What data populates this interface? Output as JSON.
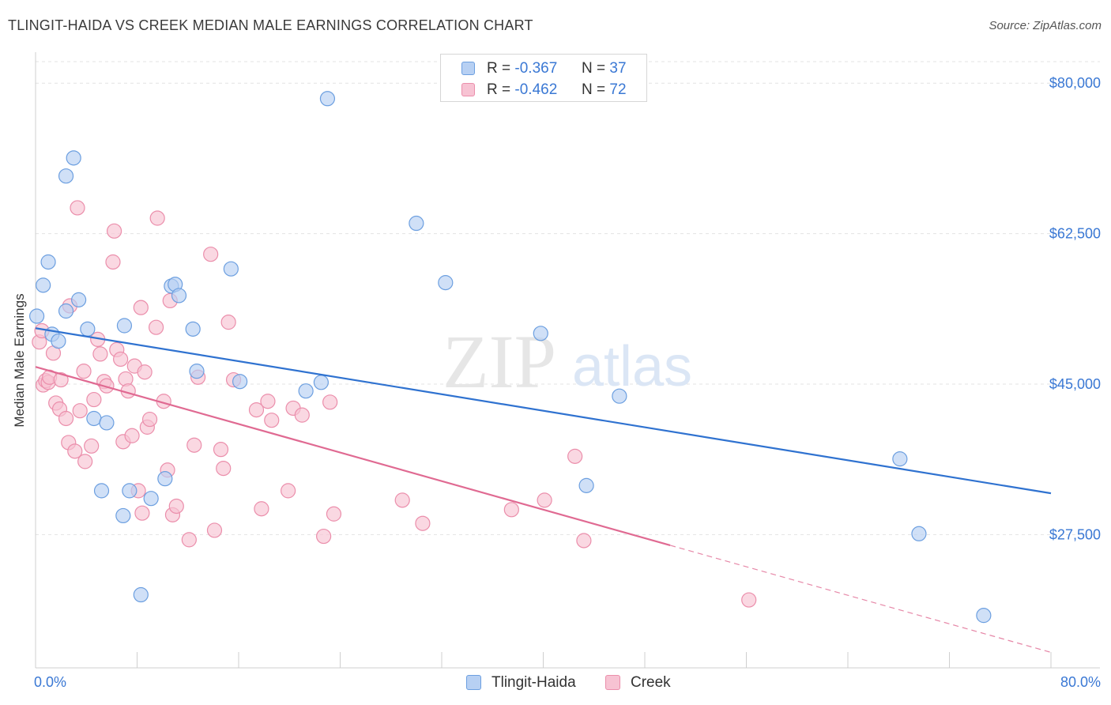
{
  "title": "TLINGIT-HAIDA VS CREEK MEDIAN MALE EARNINGS CORRELATION CHART",
  "source": "Source: ZipAtlas.com",
  "watermark": {
    "zip": "ZIP",
    "atlas": "atlas"
  },
  "colors": {
    "blue_fill": "#b7d0f3",
    "blue_stroke": "#6c9fe0",
    "blue_line": "#2f72d0",
    "pink_fill": "#f7c3d3",
    "pink_stroke": "#eb8eab",
    "pink_line": "#e06a92",
    "axis_label": "#3a78d4",
    "grid": "#e3e3e3"
  },
  "legend_top": {
    "rows": [
      {
        "r_label": "R =",
        "r_value": "-0.367",
        "n_label": "N =",
        "n_value": "37"
      },
      {
        "r_label": "R =",
        "r_value": "-0.462",
        "n_label": "N =",
        "n_value": "72"
      }
    ]
  },
  "legend_bottom": {
    "series_a": "Tlingit-Haida",
    "series_b": "Creek"
  },
  "chart_data": {
    "type": "scatter",
    "title": "TLINGIT-HAIDA VS CREEK MEDIAN MALE EARNINGS CORRELATION CHART",
    "xlabel": "",
    "ylabel": "Median Male Earnings",
    "xlim": [
      0,
      80
    ],
    "ylim": [
      12000,
      82500
    ],
    "x_tick_labels": [
      "0.0%",
      "80.0%"
    ],
    "y_ticks": [
      27500,
      45000,
      62500,
      80000
    ],
    "y_tick_labels": [
      "$27,500",
      "$45,000",
      "$62,500",
      "$80,000"
    ],
    "grid": true,
    "series": [
      {
        "name": "Tlingit-Haida",
        "r": -0.367,
        "n": 37,
        "trend": {
          "x0": 0,
          "y0": 51500,
          "x1": 80,
          "y1": 32300,
          "solid_to": 80
        },
        "points": [
          [
            0.1,
            52900
          ],
          [
            0.6,
            56500
          ],
          [
            1.0,
            59200
          ],
          [
            1.3,
            50800
          ],
          [
            1.8,
            50000
          ],
          [
            2.4,
            53500
          ],
          [
            2.4,
            69200
          ],
          [
            3.0,
            71300
          ],
          [
            3.4,
            54800
          ],
          [
            4.1,
            51400
          ],
          [
            4.6,
            41000
          ],
          [
            5.2,
            32600
          ],
          [
            5.6,
            40500
          ],
          [
            6.9,
            29700
          ],
          [
            7.0,
            51800
          ],
          [
            7.4,
            32600
          ],
          [
            8.3,
            20500
          ],
          [
            9.1,
            31700
          ],
          [
            10.2,
            34000
          ],
          [
            10.7,
            56400
          ],
          [
            11.0,
            56600
          ],
          [
            11.3,
            55300
          ],
          [
            12.4,
            51400
          ],
          [
            12.7,
            46500
          ],
          [
            15.4,
            58400
          ],
          [
            16.1,
            45300
          ],
          [
            21.3,
            44200
          ],
          [
            22.5,
            45200
          ],
          [
            23.0,
            78200
          ],
          [
            30.0,
            63700
          ],
          [
            32.3,
            56800
          ],
          [
            39.8,
            50900
          ],
          [
            43.4,
            33200
          ],
          [
            46.0,
            43600
          ],
          [
            68.1,
            36300
          ],
          [
            69.6,
            27600
          ],
          [
            74.7,
            18100
          ]
        ]
      },
      {
        "name": "Creek",
        "r": -0.462,
        "n": 72,
        "trend": {
          "x0": 0,
          "y0": 47000,
          "x1": 80,
          "y1": 13800,
          "solid_to": 50
        },
        "points": [
          [
            0.3,
            49900
          ],
          [
            0.5,
            51200
          ],
          [
            0.6,
            44900
          ],
          [
            0.8,
            45400
          ],
          [
            1.0,
            45200
          ],
          [
            1.1,
            45800
          ],
          [
            1.4,
            48600
          ],
          [
            1.6,
            42800
          ],
          [
            1.9,
            42100
          ],
          [
            2.0,
            45500
          ],
          [
            2.4,
            41000
          ],
          [
            2.6,
            38200
          ],
          [
            2.7,
            54100
          ],
          [
            3.1,
            37200
          ],
          [
            3.3,
            65500
          ],
          [
            3.5,
            41900
          ],
          [
            3.8,
            46500
          ],
          [
            3.9,
            36000
          ],
          [
            4.4,
            37800
          ],
          [
            4.6,
            43200
          ],
          [
            4.9,
            50200
          ],
          [
            5.1,
            48500
          ],
          [
            5.4,
            45300
          ],
          [
            5.6,
            44800
          ],
          [
            6.1,
            59200
          ],
          [
            6.2,
            62800
          ],
          [
            6.4,
            49000
          ],
          [
            6.7,
            47900
          ],
          [
            6.9,
            38300
          ],
          [
            7.1,
            45600
          ],
          [
            7.3,
            44200
          ],
          [
            7.6,
            39000
          ],
          [
            7.8,
            47100
          ],
          [
            8.1,
            32600
          ],
          [
            8.3,
            53900
          ],
          [
            8.4,
            30000
          ],
          [
            8.6,
            46400
          ],
          [
            8.8,
            40000
          ],
          [
            9.0,
            40900
          ],
          [
            9.5,
            51600
          ],
          [
            9.6,
            64300
          ],
          [
            10.1,
            43000
          ],
          [
            10.4,
            35000
          ],
          [
            10.6,
            54700
          ],
          [
            10.8,
            29800
          ],
          [
            11.1,
            30800
          ],
          [
            12.1,
            26900
          ],
          [
            12.5,
            37900
          ],
          [
            12.8,
            45800
          ],
          [
            13.8,
            60100
          ],
          [
            14.1,
            28000
          ],
          [
            14.6,
            37400
          ],
          [
            14.8,
            35200
          ],
          [
            15.2,
            52200
          ],
          [
            15.6,
            45500
          ],
          [
            17.4,
            42000
          ],
          [
            17.8,
            30500
          ],
          [
            18.3,
            43000
          ],
          [
            18.6,
            40800
          ],
          [
            19.9,
            32600
          ],
          [
            20.3,
            42200
          ],
          [
            21.0,
            41400
          ],
          [
            22.7,
            27300
          ],
          [
            23.2,
            42900
          ],
          [
            23.5,
            29900
          ],
          [
            28.9,
            31500
          ],
          [
            30.5,
            28800
          ],
          [
            37.5,
            30400
          ],
          [
            40.1,
            31500
          ],
          [
            42.5,
            36600
          ],
          [
            43.2,
            26800
          ],
          [
            56.2,
            19900
          ]
        ]
      }
    ]
  }
}
